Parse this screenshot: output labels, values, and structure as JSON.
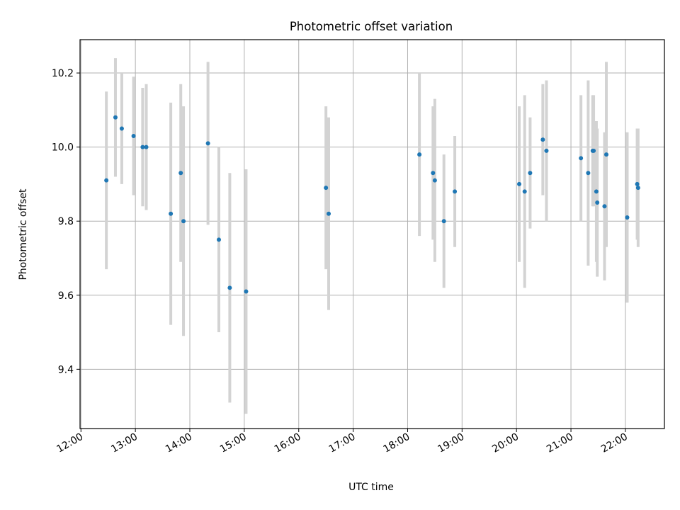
{
  "chart_data": {
    "type": "scatter",
    "title": "Photometric offset variation",
    "xlabel": "UTC time",
    "ylabel": "Photometric offset",
    "x_ticks": [
      "12:00",
      "13:00",
      "14:00",
      "15:00",
      "16:00",
      "17:00",
      "18:00",
      "19:00",
      "20:00",
      "21:00",
      "22:00"
    ],
    "y_ticks": [
      "9.4",
      "9.6",
      "9.8",
      "10.0",
      "10.2"
    ],
    "xlim": [
      "11:59",
      "22:43"
    ],
    "ylim": [
      9.24,
      10.29
    ],
    "grid": true,
    "colors": {
      "point": "#1f77b4",
      "errorbar": "#d3d3d3",
      "grid": "#b0b0b0"
    },
    "points": [
      {
        "x": "12:28",
        "y": 9.91,
        "err": 0.24
      },
      {
        "x": "12:38",
        "y": 10.08,
        "err": 0.16
      },
      {
        "x": "12:45",
        "y": 10.05,
        "err": 0.15
      },
      {
        "x": "12:58",
        "y": 10.03,
        "err": 0.16
      },
      {
        "x": "13:08",
        "y": 10.0,
        "err": 0.16
      },
      {
        "x": "13:12",
        "y": 10.0,
        "err": 0.17
      },
      {
        "x": "13:39",
        "y": 9.82,
        "err": 0.3
      },
      {
        "x": "13:50",
        "y": 9.93,
        "err": 0.24
      },
      {
        "x": "13:53",
        "y": 9.8,
        "err": 0.31
      },
      {
        "x": "14:20",
        "y": 10.01,
        "err": 0.22
      },
      {
        "x": "14:32",
        "y": 9.75,
        "err": 0.25
      },
      {
        "x": "14:44",
        "y": 9.62,
        "err": 0.31
      },
      {
        "x": "15:02",
        "y": 9.61,
        "err": 0.33
      },
      {
        "x": "16:30",
        "y": 9.89,
        "err": 0.22
      },
      {
        "x": "16:33",
        "y": 9.82,
        "err": 0.26
      },
      {
        "x": "18:13",
        "y": 9.98,
        "err": 0.22
      },
      {
        "x": "18:28",
        "y": 9.93,
        "err": 0.18
      },
      {
        "x": "18:30",
        "y": 9.91,
        "err": 0.22
      },
      {
        "x": "18:40",
        "y": 9.8,
        "err": 0.18
      },
      {
        "x": "18:52",
        "y": 9.88,
        "err": 0.15
      },
      {
        "x": "20:03",
        "y": 9.9,
        "err": 0.21
      },
      {
        "x": "20:09",
        "y": 9.88,
        "err": 0.26
      },
      {
        "x": "20:15",
        "y": 9.93,
        "err": 0.15
      },
      {
        "x": "20:29",
        "y": 10.02,
        "err": 0.15
      },
      {
        "x": "20:33",
        "y": 9.99,
        "err": 0.19
      },
      {
        "x": "21:11",
        "y": 9.97,
        "err": 0.17
      },
      {
        "x": "21:19",
        "y": 9.93,
        "err": 0.25
      },
      {
        "x": "21:24",
        "y": 9.99,
        "err": 0.15
      },
      {
        "x": "21:25",
        "y": 9.99,
        "err": 0.15
      },
      {
        "x": "21:28",
        "y": 9.88,
        "err": 0.19
      },
      {
        "x": "21:29",
        "y": 9.85,
        "err": 0.2
      },
      {
        "x": "21:37",
        "y": 9.84,
        "err": 0.2
      },
      {
        "x": "21:39",
        "y": 9.98,
        "err": 0.25
      },
      {
        "x": "22:02",
        "y": 9.81,
        "err": 0.23
      },
      {
        "x": "22:13",
        "y": 9.9,
        "err": 0.15
      },
      {
        "x": "22:14",
        "y": 9.89,
        "err": 0.16
      }
    ]
  }
}
